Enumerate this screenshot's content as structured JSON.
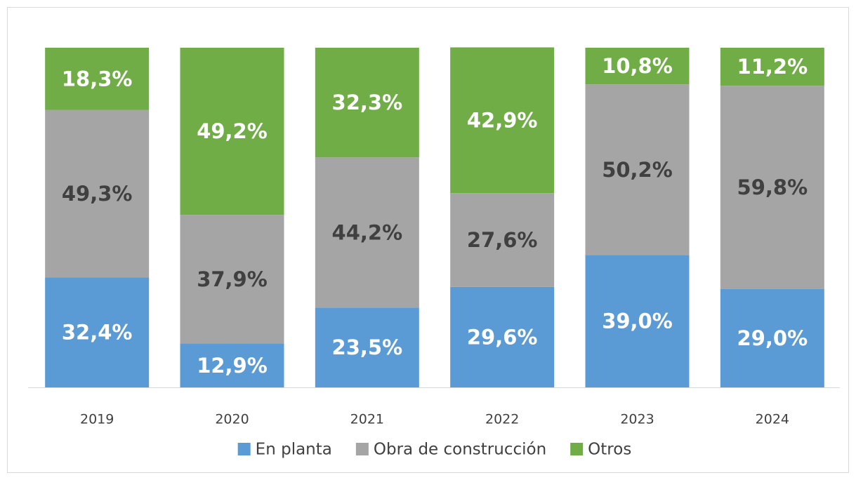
{
  "chart_data": {
    "type": "stacked_bar",
    "categories": [
      "2019",
      "2020",
      "2021",
      "2022",
      "2023",
      "2024"
    ],
    "series": [
      {
        "name": "En planta",
        "color": "#5b9bd5",
        "label_color": "#ffffff",
        "values": [
          32.4,
          12.9,
          23.5,
          29.6,
          39.0,
          29.0
        ],
        "value_labels": [
          "32,4%",
          "12,9%",
          "23,5%",
          "29,6%",
          "39,0%",
          "29,0%"
        ]
      },
      {
        "name": "Obra de construcción",
        "color": "#a5a5a5",
        "label_color": "#404040",
        "values": [
          49.3,
          37.9,
          44.2,
          27.6,
          50.2,
          59.8
        ],
        "value_labels": [
          "49,3%",
          "37,9%",
          "44,2%",
          "27,6%",
          "50,2%",
          "59,8%"
        ]
      },
      {
        "name": "Otros",
        "color": "#70ad47",
        "label_color": "#ffffff",
        "values": [
          18.3,
          49.2,
          32.3,
          42.9,
          10.8,
          11.2
        ],
        "value_labels": [
          "18,3%",
          "49,2%",
          "32,3%",
          "42,9%",
          "10,8%",
          "11,2%"
        ]
      }
    ],
    "ylim": [
      0,
      100
    ],
    "legend": "bottom"
  }
}
